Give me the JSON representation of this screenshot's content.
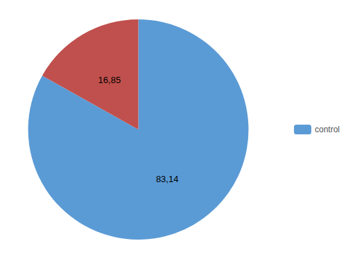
{
  "chart_data": {
    "type": "pie",
    "categories": [
      "control",
      null
    ],
    "values": [
      83.14,
      16.85
    ],
    "value_labels": [
      "83,14",
      "16,85"
    ],
    "colors": [
      "#5B9BD5",
      "#C0504D"
    ],
    "data_labels": true,
    "legend": "right"
  }
}
